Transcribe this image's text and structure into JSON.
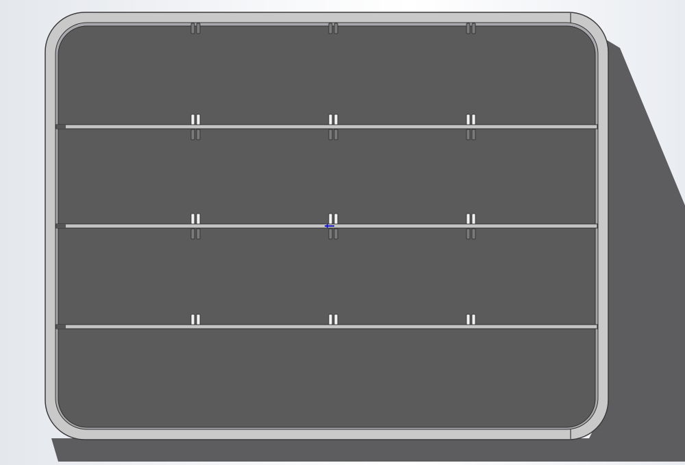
{
  "viewport": {
    "view": "cad-model-top-view",
    "colors": {
      "background": "#f4f5f7",
      "shadow": "#5d5d5f",
      "frame": "#c9c9c9",
      "panel": "#5b5b5b",
      "divider": "#c4c4c4",
      "clip_light": "#f2f2f2",
      "clip_dark": "#7a7a7a",
      "origin_marker": "#2020c0"
    },
    "divider_count": 3,
    "clip_columns": 3
  }
}
